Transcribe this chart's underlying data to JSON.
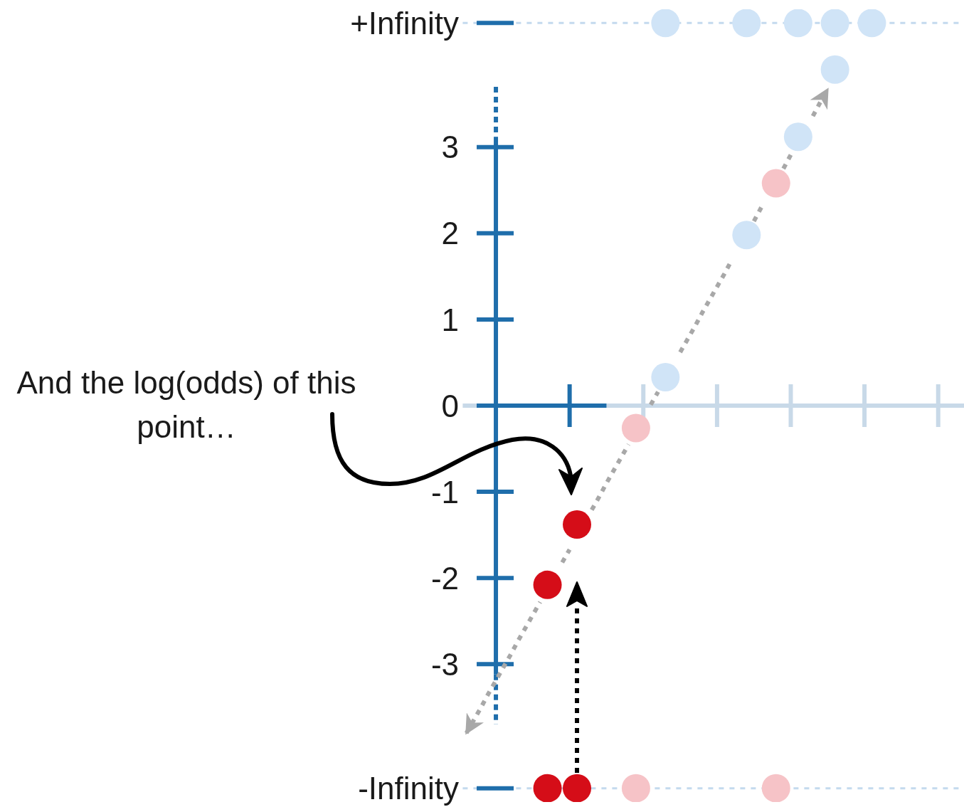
{
  "chart_data": {
    "type": "scatter",
    "annotations": [
      "And the log(odds) of this point…"
    ],
    "categories": [
      null,
      null,
      null,
      null,
      null,
      null,
      null,
      null,
      null,
      null,
      null,
      null,
      null,
      null,
      null,
      null,
      null,
      null,
      null,
      null,
      null,
      null,
      null,
      null,
      null,
      null,
      null,
      null,
      null,
      null,
      null,
      null,
      null,
      null,
      null,
      null,
      null,
      null,
      null,
      null,
      null,
      null,
      null,
      null,
      null,
      null,
      null,
      null,
      null,
      null,
      null,
      null,
      null,
      null,
      null,
      null,
      null,
      null,
      null,
      null,
      null,
      null,
      null,
      null,
      null,
      null,
      null,
      null
    ],
    "ylim": [
      -4.6,
      4.6
    ],
    "yticks": [
      {
        "value": -4.44,
        "label": "-Infinity"
      },
      -3,
      -2,
      -1,
      0,
      1,
      2,
      3,
      {
        "value": 4.44,
        "label": "+Infinity"
      }
    ],
    "tick_labels": "y",
    "marker": "circle",
    "ref_lines": [
      {
        "axis": "y",
        "value": 0,
        "color": "#c8d9e8",
        "line_style": "solid"
      },
      {
        "axis": "y",
        "value": 4.44,
        "color": "#c4daee",
        "line_style": "dotted"
      },
      {
        "axis": "y",
        "value": -4.44,
        "color": "#c4daee",
        "line_style": "dotted"
      }
    ],
    "series": [
      {
        "color": "#d50d18",
        "values": [
          null,
          null,
          null,
          null,
          null,
          null,
          null,
          null,
          null,
          null,
          null,
          -4.44,
          null,
          null,
          null,
          -4.44,
          null,
          null,
          null,
          null,
          null,
          null,
          null,
          null,
          null,
          null,
          null,
          null,
          null,
          null,
          null,
          null,
          null,
          null,
          null,
          null,
          null,
          null,
          null,
          null,
          null,
          null,
          null,
          null,
          null,
          null,
          null,
          null,
          null,
          null,
          null,
          null,
          null,
          null,
          null,
          null,
          null,
          null,
          null,
          null,
          null,
          null,
          null,
          null,
          null,
          null,
          null,
          null
        ]
      },
      {
        "color": "#d50d18",
        "values": [
          null,
          null,
          null,
          null,
          null,
          null,
          null,
          null,
          null,
          null,
          null,
          -2.08,
          null,
          null,
          null,
          -1.38,
          null,
          null,
          null,
          null,
          null,
          null,
          null,
          null,
          null,
          null,
          null,
          null,
          null,
          null,
          null,
          null,
          null,
          null,
          null,
          null,
          null,
          null,
          null,
          null,
          null,
          null,
          null,
          null,
          null,
          null,
          null,
          null,
          null,
          null,
          null,
          null,
          null,
          null,
          null,
          null,
          null,
          null,
          null,
          null,
          null,
          null,
          null,
          null,
          null,
          null,
          null,
          null
        ]
      },
      {
        "color": "#f6c3c7",
        "values": [
          null,
          null,
          null,
          null,
          null,
          null,
          null,
          null,
          null,
          null,
          null,
          null,
          null,
          null,
          null,
          null,
          null,
          null,
          null,
          null,
          null,
          null,
          null,
          -4.44,
          null,
          null,
          null,
          null,
          null,
          null,
          null,
          null,
          null,
          null,
          null,
          null,
          null,
          null,
          null,
          null,
          null,
          null,
          -4.44,
          null,
          null,
          null,
          null,
          null,
          null,
          null,
          null,
          null,
          null,
          null,
          null,
          null,
          null,
          null,
          null,
          null,
          null,
          null,
          null,
          null,
          null,
          null,
          null,
          null
        ]
      },
      {
        "color": "#f6c3c7",
        "values": [
          null,
          null,
          null,
          null,
          null,
          null,
          null,
          null,
          null,
          null,
          null,
          null,
          null,
          null,
          null,
          null,
          null,
          null,
          null,
          null,
          null,
          null,
          null,
          -0.26,
          null,
          null,
          null,
          null,
          null,
          null,
          null,
          null,
          null,
          null,
          null,
          null,
          null,
          null,
          null,
          null,
          null,
          null,
          2.58,
          null,
          null,
          null,
          null,
          null,
          null,
          null,
          null,
          null,
          null,
          null,
          null,
          null,
          null,
          null,
          null,
          null,
          null,
          null,
          null,
          null,
          null,
          null,
          null,
          null
        ]
      },
      {
        "color": "#d0e4f7",
        "values": [
          null,
          null,
          null,
          null,
          null,
          null,
          null,
          null,
          null,
          null,
          null,
          null,
          null,
          null,
          null,
          null,
          null,
          null,
          null,
          null,
          null,
          null,
          null,
          null,
          null,
          null,
          null,
          4.44,
          null,
          null,
          null,
          null,
          null,
          null,
          null,
          null,
          null,
          null,
          4.44,
          null,
          null,
          null,
          null,
          null,
          null,
          4.44,
          null,
          null,
          null,
          null,
          4.44,
          null,
          null,
          null,
          null,
          4.44,
          null,
          null,
          null,
          null,
          null,
          null,
          null,
          null,
          null,
          null,
          null,
          null
        ]
      },
      {
        "color": "#d0e4f7",
        "values": [
          null,
          null,
          null,
          null,
          null,
          null,
          null,
          null,
          null,
          null,
          null,
          null,
          null,
          null,
          null,
          null,
          null,
          null,
          null,
          null,
          null,
          null,
          null,
          null,
          null,
          null,
          null,
          0.33,
          null,
          null,
          null,
          null,
          null,
          null,
          null,
          null,
          null,
          null,
          1.98,
          null,
          null,
          null,
          null,
          null,
          null,
          3.12,
          null,
          null,
          null,
          null,
          3.9,
          null,
          null,
          null,
          null,
          null,
          null,
          null,
          null,
          null,
          null,
          null,
          null,
          null,
          null,
          null,
          null,
          null
        ]
      },
      {
        "type": "line",
        "color": "#a8a8a8",
        "line_style": "dotted",
        "marker": "none",
        "values": [
          -3.8,
          -3.65,
          -3.5,
          -3.34,
          -3.19,
          -3.04,
          -2.89,
          -2.73,
          -2.58,
          -2.43,
          -2.28,
          null,
          null,
          -1.82,
          -1.67,
          null,
          null,
          -1.21,
          -1.06,
          -0.9,
          -0.75,
          -0.6,
          -0.45,
          null,
          null,
          0.01,
          0.16,
          null,
          null,
          0.62,
          0.77,
          0.92,
          1.08,
          1.23,
          1.38,
          1.53,
          1.69,
          null,
          null,
          2.14,
          2.3,
          null,
          null,
          2.75,
          2.91,
          null,
          null,
          3.36,
          3.52,
          3.67,
          null,
          null,
          null,
          null,
          null,
          null,
          null,
          null,
          null,
          null,
          null,
          null,
          null,
          null,
          null,
          null,
          null,
          null
        ]
      }
    ]
  }
}
